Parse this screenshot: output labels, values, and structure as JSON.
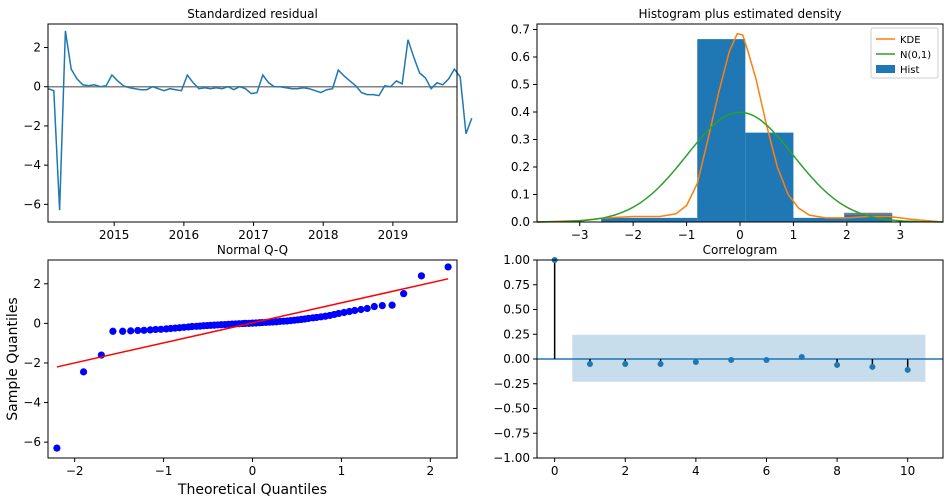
{
  "chart_data": [
    {
      "id": "resid",
      "type": "line",
      "title": "Standardized residual",
      "xlabel": "",
      "ylabel": "",
      "xlim": [
        2014.05,
        2019.92
      ],
      "ylim": [
        -6.9,
        3.2
      ],
      "xticks": [
        {
          "value": 2015,
          "label": "2015"
        },
        {
          "value": 2016,
          "label": "2016"
        },
        {
          "value": 2017,
          "label": "2017"
        },
        {
          "value": 2018,
          "label": "2018"
        },
        {
          "value": 2019,
          "label": "2019"
        }
      ],
      "yticks": [
        {
          "value": 2,
          "label": "2"
        },
        {
          "value": 0,
          "label": "0"
        },
        {
          "value": -2,
          "label": "−2"
        },
        {
          "value": -4,
          "label": "−4"
        },
        {
          "value": -6,
          "label": "−6"
        }
      ],
      "hline": 0,
      "colors": {
        "line": "#1f77b4",
        "hline": "#808080"
      },
      "series": [
        {
          "x_start": 2014.05,
          "x_step": 0.08333,
          "values": [
            -0.1,
            -0.2,
            -6.3,
            2.85,
            0.9,
            0.4,
            0.1,
            0.05,
            0.1,
            0.0,
            0.05,
            0.6,
            0.3,
            0.05,
            -0.05,
            -0.1,
            -0.15,
            -0.15,
            0.0,
            -0.1,
            -0.2,
            -0.1,
            -0.15,
            -0.2,
            0.6,
            0.2,
            -0.1,
            -0.05,
            -0.1,
            -0.05,
            -0.1,
            0.0,
            -0.15,
            0.0,
            -0.1,
            -0.35,
            -0.3,
            0.6,
            0.2,
            0.0,
            0.0,
            -0.05,
            -0.1,
            -0.1,
            -0.05,
            -0.1,
            -0.2,
            -0.3,
            -0.15,
            -0.1,
            0.85,
            0.55,
            0.3,
            0.05,
            -0.3,
            -0.4,
            -0.4,
            -0.45,
            0.05,
            0.0,
            0.3,
            0.15,
            2.4,
            1.5,
            0.7,
            0.45,
            -0.1,
            0.2,
            0.1,
            0.4,
            0.9,
            0.5,
            -2.4,
            -1.6
          ]
        }
      ]
    },
    {
      "id": "hist",
      "type": "bar",
      "title": "Histogram plus estimated density",
      "xlim": [
        -3.8,
        3.8
      ],
      "ylim": [
        0,
        0.72
      ],
      "xticks": [
        {
          "value": -3,
          "label": "−3"
        },
        {
          "value": -2,
          "label": "−2"
        },
        {
          "value": -1,
          "label": "−1"
        },
        {
          "value": 0,
          "label": "0"
        },
        {
          "value": 1,
          "label": "1"
        },
        {
          "value": 2,
          "label": "2"
        },
        {
          "value": 3,
          "label": "3"
        }
      ],
      "yticks": [
        {
          "value": 0.0,
          "label": "0.0"
        },
        {
          "value": 0.1,
          "label": "0.1"
        },
        {
          "value": 0.2,
          "label": "0.2"
        },
        {
          "value": 0.3,
          "label": "0.3"
        },
        {
          "value": 0.4,
          "label": "0.4"
        },
        {
          "value": 0.5,
          "label": "0.5"
        },
        {
          "value": 0.6,
          "label": "0.6"
        },
        {
          "value": 0.7,
          "label": "0.7"
        }
      ],
      "bins": [
        {
          "x0": -2.6,
          "x1": -0.8,
          "height": 0.015
        },
        {
          "x0": -0.8,
          "x1": 0.1,
          "height": 0.665
        },
        {
          "x0": 0.1,
          "x1": 1.0,
          "height": 0.325
        },
        {
          "x0": 1.0,
          "x1": 1.95,
          "height": 0.015
        },
        {
          "x0": 1.95,
          "x1": 2.85,
          "height": 0.03
        }
      ],
      "kde": {
        "name": "KDE",
        "x": [
          -3.8,
          -3.0,
          -2.5,
          -2.0,
          -1.5,
          -1.2,
          -1.0,
          -0.8,
          -0.6,
          -0.4,
          -0.2,
          -0.05,
          0.05,
          0.15,
          0.3,
          0.5,
          0.7,
          0.9,
          1.1,
          1.3,
          1.6,
          2.0,
          2.4,
          2.8,
          3.2,
          3.8
        ],
        "y": [
          0.0,
          0.005,
          0.015,
          0.02,
          0.02,
          0.03,
          0.06,
          0.14,
          0.3,
          0.47,
          0.62,
          0.685,
          0.68,
          0.62,
          0.52,
          0.35,
          0.2,
          0.1,
          0.05,
          0.025,
          0.015,
          0.015,
          0.02,
          0.02,
          0.01,
          0.0
        ]
      },
      "normal": {
        "name": "N(0,1)"
      },
      "legend": {
        "position": "top-right",
        "hist_name": "Hist"
      },
      "colors": {
        "hist": "#1f77b4",
        "kde": "#ff7f0e",
        "normal": "#2ca02c",
        "extra_bar": "#7f7f7f"
      }
    },
    {
      "id": "qq",
      "type": "scatter",
      "title": "Normal Q-Q",
      "xlabel": "Theoretical Quantiles",
      "ylabel": "Sample Quantiles",
      "xlim": [
        -2.3,
        2.3
      ],
      "ylim": [
        -6.8,
        3.2
      ],
      "xticks": [
        {
          "value": -2,
          "label": "−2"
        },
        {
          "value": -1,
          "label": "−1"
        },
        {
          "value": 0,
          "label": "0"
        },
        {
          "value": 1,
          "label": "1"
        },
        {
          "value": 2,
          "label": "2"
        }
      ],
      "yticks": [
        {
          "value": 2,
          "label": "2"
        },
        {
          "value": 0,
          "label": "0"
        },
        {
          "value": -2,
          "label": "−2"
        },
        {
          "value": -4,
          "label": "−4"
        },
        {
          "value": -6,
          "label": "−6"
        }
      ],
      "line": {
        "x": [
          -2.2,
          2.2
        ],
        "y": [
          -2.2,
          2.25
        ]
      },
      "colors": {
        "points": "#0000ff",
        "line": "#ff0000"
      },
      "points": {
        "x": [
          -2.2,
          -1.9,
          -1.7,
          -1.57,
          -1.46,
          -1.37,
          -1.29,
          -1.22,
          -1.15,
          -1.09,
          -1.03,
          -0.97,
          -0.92,
          -0.87,
          -0.82,
          -0.77,
          -0.72,
          -0.68,
          -0.63,
          -0.59,
          -0.55,
          -0.51,
          -0.47,
          -0.43,
          -0.39,
          -0.35,
          -0.31,
          -0.27,
          -0.23,
          -0.19,
          -0.15,
          -0.11,
          -0.08,
          -0.04,
          0.0,
          0.04,
          0.08,
          0.11,
          0.15,
          0.19,
          0.23,
          0.27,
          0.31,
          0.35,
          0.39,
          0.43,
          0.47,
          0.51,
          0.55,
          0.59,
          0.63,
          0.68,
          0.72,
          0.77,
          0.82,
          0.87,
          0.92,
          0.97,
          1.03,
          1.09,
          1.15,
          1.22,
          1.29,
          1.37,
          1.46,
          1.57,
          1.7,
          1.9,
          2.2
        ],
        "y": [
          -6.3,
          -2.45,
          -1.6,
          -0.4,
          -0.4,
          -0.38,
          -0.36,
          -0.35,
          -0.33,
          -0.31,
          -0.3,
          -0.28,
          -0.26,
          -0.24,
          -0.22,
          -0.2,
          -0.18,
          -0.16,
          -0.15,
          -0.14,
          -0.12,
          -0.11,
          -0.1,
          -0.09,
          -0.08,
          -0.07,
          -0.06,
          -0.05,
          -0.04,
          -0.03,
          -0.02,
          -0.01,
          0.0,
          0.0,
          0.01,
          0.02,
          0.03,
          0.04,
          0.05,
          0.06,
          0.07,
          0.08,
          0.1,
          0.11,
          0.12,
          0.14,
          0.16,
          0.18,
          0.2,
          0.22,
          0.25,
          0.28,
          0.3,
          0.33,
          0.36,
          0.4,
          0.45,
          0.5,
          0.55,
          0.6,
          0.65,
          0.7,
          0.75,
          0.85,
          0.9,
          0.92,
          1.5,
          2.4,
          2.85
        ]
      }
    },
    {
      "id": "corr",
      "type": "scatter",
      "title": "Correlogram",
      "xlim": [
        -0.5,
        11.0
      ],
      "ylim": [
        -1.0,
        1.0
      ],
      "xticks": [
        {
          "value": 0,
          "label": "0"
        },
        {
          "value": 2,
          "label": "2"
        },
        {
          "value": 4,
          "label": "4"
        },
        {
          "value": 6,
          "label": "6"
        },
        {
          "value": 8,
          "label": "8"
        },
        {
          "value": 10,
          "label": "10"
        }
      ],
      "yticks": [
        {
          "value": 1.0,
          "label": "1.00"
        },
        {
          "value": 0.75,
          "label": "0.75"
        },
        {
          "value": 0.5,
          "label": "0.50"
        },
        {
          "value": 0.25,
          "label": "0.25"
        },
        {
          "value": 0.0,
          "label": "0.00"
        },
        {
          "value": -0.25,
          "label": "−0.25"
        },
        {
          "value": -0.5,
          "label": "−0.50"
        },
        {
          "value": -0.75,
          "label": "−0.75"
        },
        {
          "value": -1.0,
          "label": "−1.00"
        }
      ],
      "confidence_band": {
        "x": [
          0.5,
          10.5
        ],
        "upper": 0.245,
        "lower": -0.23
      },
      "lags": [
        0,
        1,
        2,
        3,
        4,
        5,
        6,
        7,
        8,
        9,
        10
      ],
      "acf": [
        1.0,
        -0.05,
        -0.05,
        -0.05,
        -0.03,
        -0.01,
        -0.01,
        0.02,
        -0.06,
        -0.08,
        -0.11
      ],
      "colors": {
        "points": "#1f77b4",
        "stems": "#000000",
        "band": "#1f77b4",
        "zero_line": "#1f77b4"
      }
    }
  ]
}
